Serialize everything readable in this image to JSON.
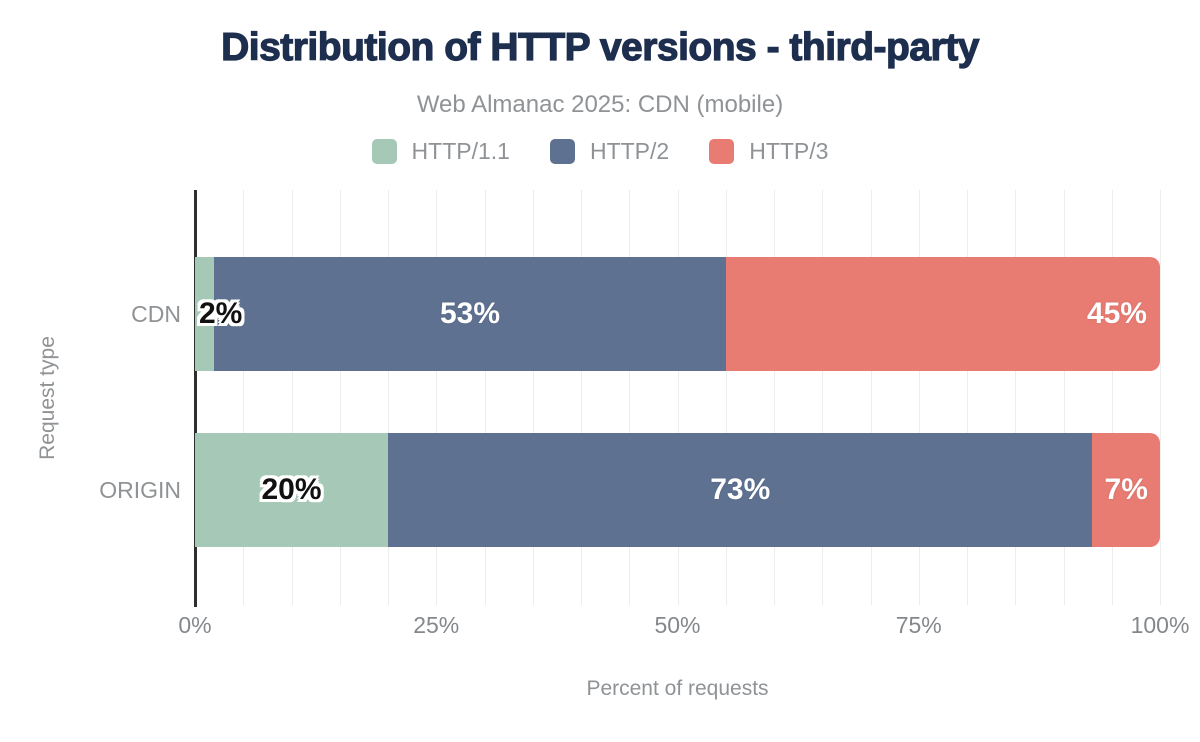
{
  "title": "Distribution of HTTP versions - third-party",
  "subtitle": "Web Almanac 2025: CDN (mobile)",
  "colors": {
    "title": "#1d2e4e",
    "muted_text": "#8f9396",
    "tick_text": "#85888b",
    "axis_line": "#2e2e2e",
    "gridline": "#ededed",
    "background": "#ffffff",
    "http11": "#a5c9b6",
    "http2": "#5f7191",
    "http3": "#e87b72",
    "label_dark": "#111111",
    "label_light": "#ffffff"
  },
  "chart_data": {
    "type": "bar",
    "stacked": true,
    "orientation": "horizontal",
    "categories": [
      "CDN",
      "ORIGIN"
    ],
    "series": [
      {
        "name": "HTTP/1.1",
        "color": "#a5c9b6",
        "values": [
          2,
          20
        ],
        "labels": [
          "2%",
          "20%"
        ],
        "label_style": "dark",
        "label_align": [
          "start",
          "center"
        ]
      },
      {
        "name": "HTTP/2",
        "color": "#5f7191",
        "values": [
          53,
          73
        ],
        "labels": [
          "53%",
          "73%"
        ],
        "label_style": "light",
        "label_align": [
          "center",
          "center"
        ]
      },
      {
        "name": "HTTP/3",
        "color": "#e87b72",
        "values": [
          45,
          7
        ],
        "labels": [
          "45%",
          "7%"
        ],
        "label_style": "light",
        "label_align": [
          "end",
          "center"
        ]
      }
    ],
    "xlabel": "Percent of requests",
    "ylabel": "Request type",
    "x_ticks": [
      {
        "label": "0%",
        "value": 0
      },
      {
        "label": "25%",
        "value": 25
      },
      {
        "label": "50%",
        "value": 50
      },
      {
        "label": "75%",
        "value": 75
      },
      {
        "label": "100%",
        "value": 100
      }
    ],
    "xlim": [
      0,
      100
    ],
    "grid": "vertical",
    "grid_interval_pct": 5,
    "legend_position": "top"
  }
}
